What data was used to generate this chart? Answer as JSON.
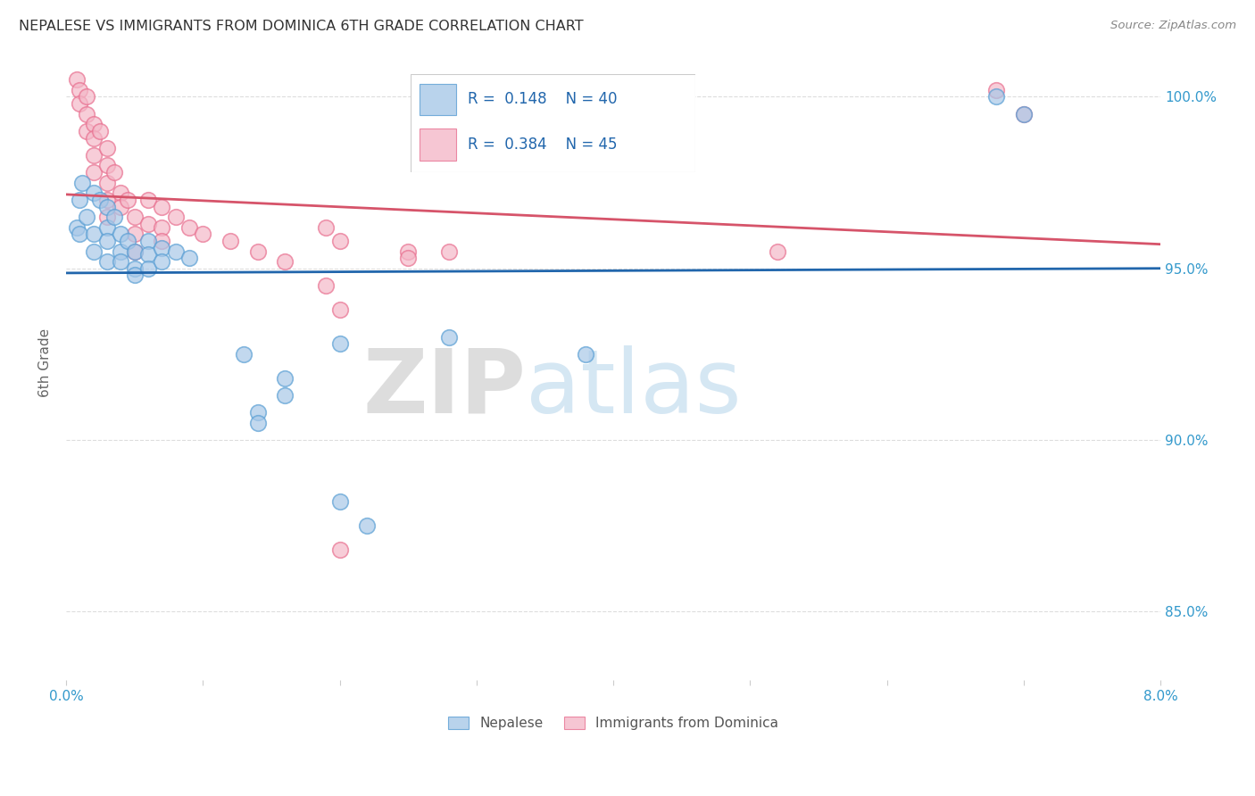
{
  "title": "NEPALESE VS IMMIGRANTS FROM DOMINICA 6TH GRADE CORRELATION CHART",
  "source": "Source: ZipAtlas.com",
  "ylabel": "6th Grade",
  "xlim": [
    0.0,
    0.08
  ],
  "ylim": [
    83.0,
    101.5
  ],
  "watermark_zip": "ZIP",
  "watermark_atlas": "atlas",
  "blue_color": "#a8c8e8",
  "pink_color": "#f4b8c8",
  "blue_line_color": "#2166ac",
  "pink_line_color": "#d6546a",
  "blue_edge": "#5a9fd4",
  "pink_edge": "#e87090",
  "legend_text_color": "#2166ac",
  "tick_color": "#3399cc",
  "ylabel_color": "#666666",
  "grid_color": "#dddddd",
  "nepalese_points": [
    [
      0.0008,
      96.2
    ],
    [
      0.001,
      97.0
    ],
    [
      0.001,
      96.0
    ],
    [
      0.0012,
      97.5
    ],
    [
      0.0015,
      96.5
    ],
    [
      0.002,
      97.2
    ],
    [
      0.002,
      96.0
    ],
    [
      0.002,
      95.5
    ],
    [
      0.0025,
      97.0
    ],
    [
      0.003,
      96.8
    ],
    [
      0.003,
      96.2
    ],
    [
      0.003,
      95.8
    ],
    [
      0.003,
      95.2
    ],
    [
      0.0035,
      96.5
    ],
    [
      0.004,
      96.0
    ],
    [
      0.004,
      95.5
    ],
    [
      0.004,
      95.2
    ],
    [
      0.0045,
      95.8
    ],
    [
      0.005,
      95.5
    ],
    [
      0.005,
      95.0
    ],
    [
      0.005,
      94.8
    ],
    [
      0.006,
      95.8
    ],
    [
      0.006,
      95.4
    ],
    [
      0.006,
      95.0
    ],
    [
      0.007,
      95.6
    ],
    [
      0.007,
      95.2
    ],
    [
      0.008,
      95.5
    ],
    [
      0.009,
      95.3
    ],
    [
      0.013,
      92.5
    ],
    [
      0.014,
      90.8
    ],
    [
      0.014,
      90.5
    ],
    [
      0.016,
      91.8
    ],
    [
      0.016,
      91.3
    ],
    [
      0.02,
      92.8
    ],
    [
      0.028,
      93.0
    ],
    [
      0.02,
      88.2
    ],
    [
      0.022,
      87.5
    ],
    [
      0.038,
      92.5
    ],
    [
      0.068,
      100.0
    ],
    [
      0.07,
      99.5
    ]
  ],
  "dominica_points": [
    [
      0.0008,
      100.5
    ],
    [
      0.001,
      100.2
    ],
    [
      0.001,
      99.8
    ],
    [
      0.0015,
      100.0
    ],
    [
      0.0015,
      99.5
    ],
    [
      0.0015,
      99.0
    ],
    [
      0.002,
      99.2
    ],
    [
      0.002,
      98.8
    ],
    [
      0.002,
      98.3
    ],
    [
      0.002,
      97.8
    ],
    [
      0.0025,
      99.0
    ],
    [
      0.003,
      98.5
    ],
    [
      0.003,
      98.0
    ],
    [
      0.003,
      97.5
    ],
    [
      0.003,
      97.0
    ],
    [
      0.003,
      96.5
    ],
    [
      0.0035,
      97.8
    ],
    [
      0.004,
      97.2
    ],
    [
      0.004,
      96.8
    ],
    [
      0.0045,
      97.0
    ],
    [
      0.005,
      96.5
    ],
    [
      0.005,
      96.0
    ],
    [
      0.005,
      95.5
    ],
    [
      0.006,
      97.0
    ],
    [
      0.006,
      96.3
    ],
    [
      0.007,
      96.8
    ],
    [
      0.007,
      96.2
    ],
    [
      0.007,
      95.8
    ],
    [
      0.008,
      96.5
    ],
    [
      0.009,
      96.2
    ],
    [
      0.01,
      96.0
    ],
    [
      0.012,
      95.8
    ],
    [
      0.014,
      95.5
    ],
    [
      0.019,
      96.2
    ],
    [
      0.02,
      95.8
    ],
    [
      0.019,
      94.5
    ],
    [
      0.02,
      93.8
    ],
    [
      0.025,
      95.5
    ],
    [
      0.02,
      86.8
    ],
    [
      0.025,
      95.3
    ],
    [
      0.028,
      95.5
    ],
    [
      0.052,
      95.5
    ],
    [
      0.068,
      100.2
    ],
    [
      0.07,
      99.5
    ],
    [
      0.016,
      95.2
    ]
  ]
}
